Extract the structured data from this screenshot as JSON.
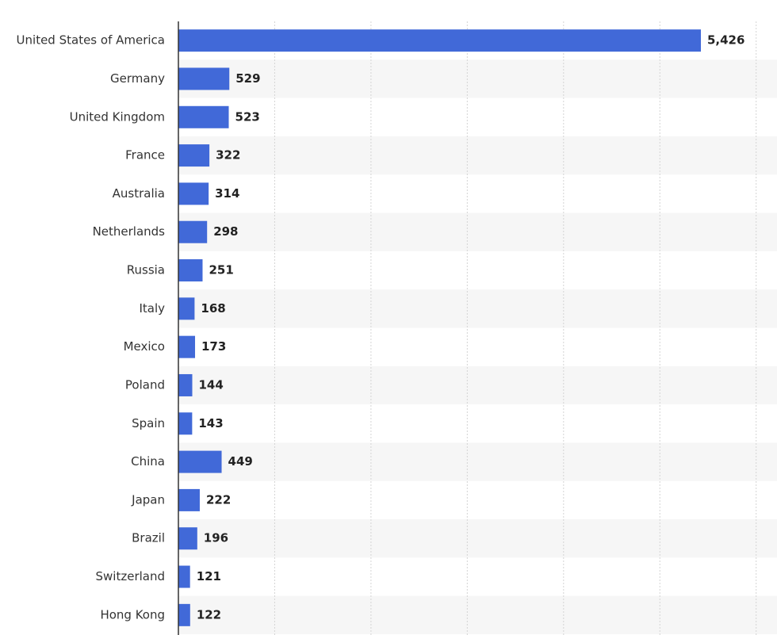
{
  "chart_data": {
    "type": "bar",
    "orientation": "horizontal",
    "categories": [
      "United States of America",
      "Germany",
      "United Kingdom",
      "France",
      "Australia",
      "Netherlands",
      "Russia",
      "Italy",
      "Mexico",
      "Poland",
      "Spain",
      "China",
      "Japan",
      "Brazil",
      "Switzerland",
      "Hong Kong"
    ],
    "values": [
      5426,
      529,
      523,
      322,
      314,
      298,
      251,
      168,
      173,
      144,
      143,
      449,
      222,
      196,
      121,
      122
    ],
    "value_labels": [
      "5,426",
      "529",
      "523",
      "322",
      "314",
      "298",
      "251",
      "168",
      "173",
      "144",
      "143",
      "449",
      "222",
      "196",
      "121",
      "122"
    ],
    "color": "#4169d8",
    "xlim": [
      0,
      6200
    ],
    "xticks": [
      0,
      1000,
      2000,
      3000,
      4000,
      5000,
      6000
    ],
    "grid": true
  }
}
